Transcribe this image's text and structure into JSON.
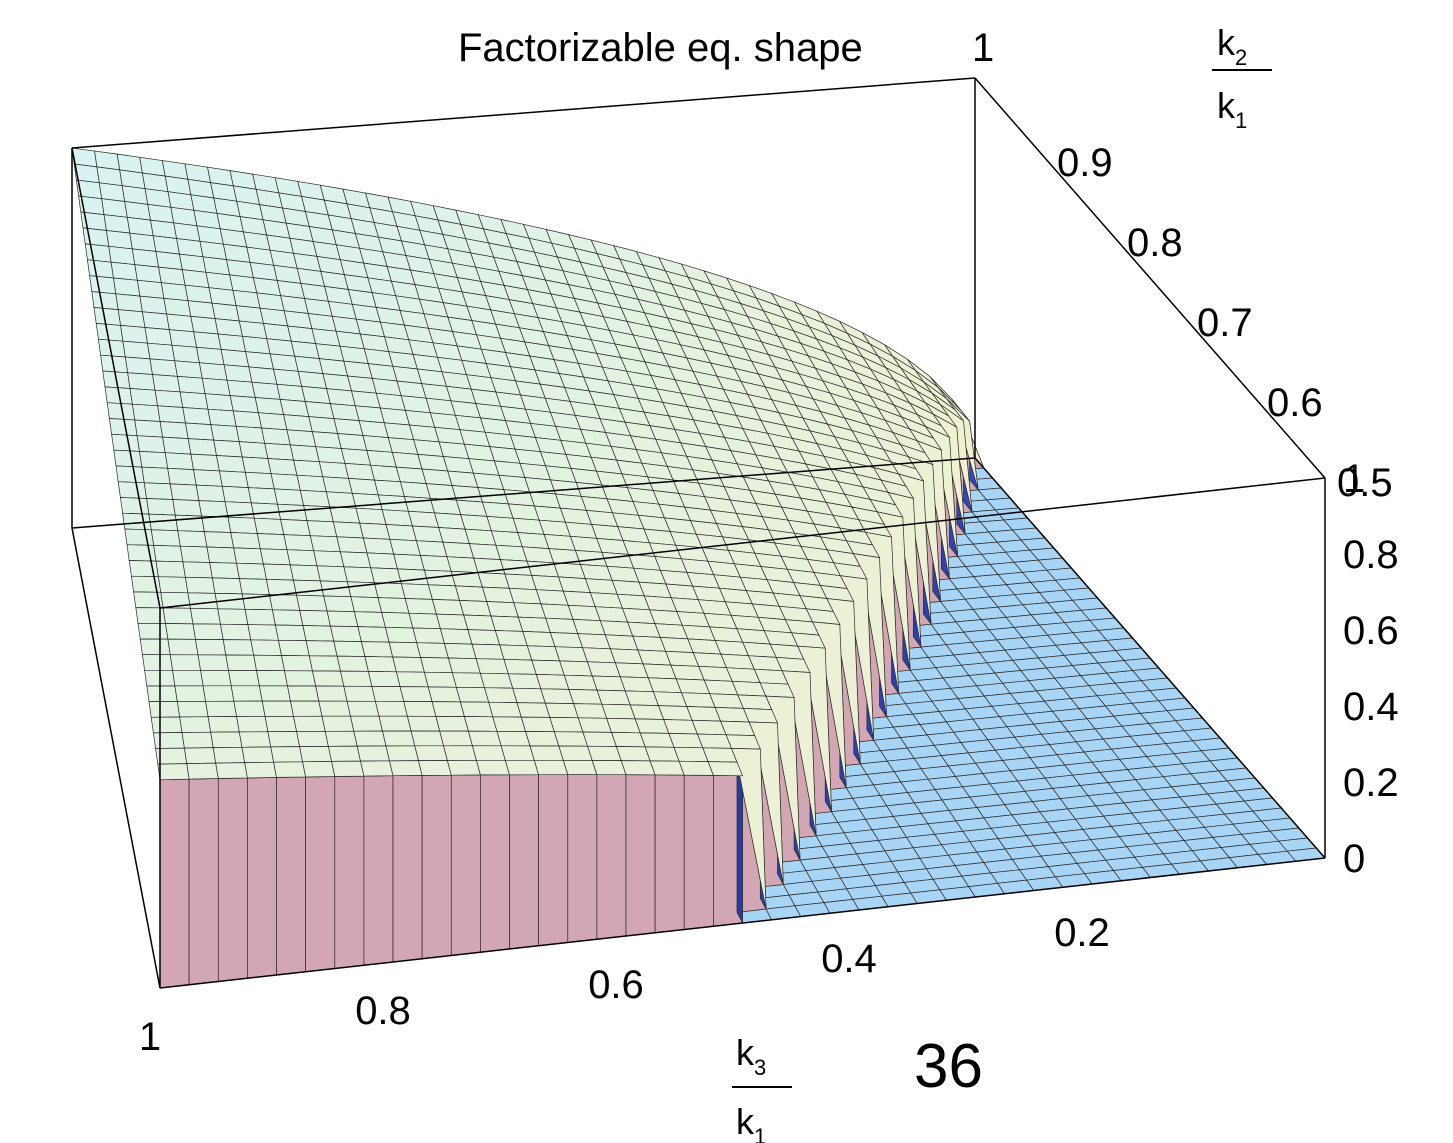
{
  "chart_data": {
    "type": "surface3d",
    "title": "Factorizable   eq. shape",
    "page_number": "36",
    "axes": {
      "x": {
        "label_num": "k",
        "label_num_sub": "3",
        "label_den": "k",
        "label_den_sub": "1",
        "range": [
          0,
          1
        ],
        "ticks": [
          "1",
          "0.8",
          "0.6",
          "0.4",
          "0.2"
        ],
        "tick_values": [
          1,
          0.8,
          0.6,
          0.4,
          0.2
        ]
      },
      "y": {
        "label_num": "k",
        "label_num_sub": "2",
        "label_den": "k",
        "label_den_sub": "1",
        "range": [
          0.5,
          1
        ],
        "ticks": [
          "0.9",
          "0.8",
          "0.7",
          "0.6",
          "0.5"
        ],
        "tick_values": [
          0.9,
          0.8,
          0.7,
          0.6,
          0.5
        ]
      },
      "z": {
        "range": [
          0,
          1
        ],
        "ticks": [
          "1",
          "0.8",
          "0.6",
          "0.4",
          "0.2",
          "0"
        ],
        "tick_values": [
          1,
          0.8,
          0.6,
          0.4,
          0.2,
          0
        ]
      }
    },
    "box_top_label": "1",
    "surface_description_values": {
      "peak": {
        "x": 1,
        "y": 1,
        "z": 1
      },
      "domain": "x2 + x3 >= 1 (nonzero region), zero elsewhere",
      "grid": 40
    },
    "colors": {
      "floor": "#a8d4f5",
      "surface_top": "#d8f3f3",
      "surface_low": "#f5f0c8",
      "wall_front": "#d3a6b3",
      "wall_dark": "#0b1a6a",
      "grid_line": "#2a2a2a"
    }
  }
}
